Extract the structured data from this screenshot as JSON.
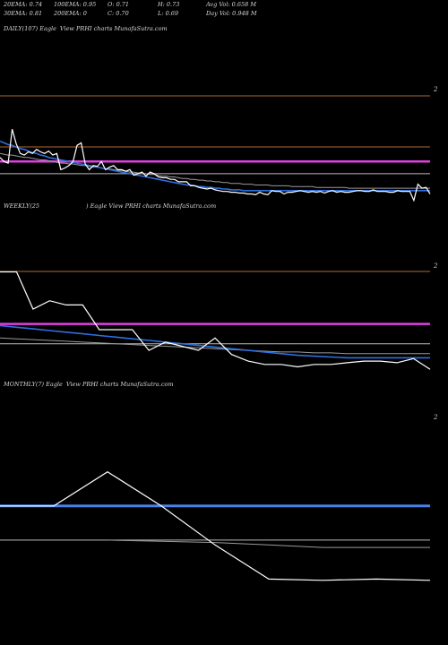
{
  "stats": {
    "ema20": "20EMA: 0.74",
    "ema100": "100EMA: 0.95",
    "open": "O: 0.71",
    "high": "H: 0.73",
    "avg_vol": "Avg Vol: 0.658 M",
    "ema30": "30EMA: 0.81",
    "ema200": "200EMA: 0",
    "close": "C: 0.70",
    "low": "L: 0.69",
    "day_vol": "Day Vol: 0.948 M"
  },
  "panels": {
    "daily": {
      "label_prefix": "DAILY(107) Eagle",
      "label_suffix": "View  PRHI charts MunafaSutra.com"
    },
    "weekly": {
      "label_prefix": "WEEKLY(25",
      "label_suffix": ") Eagle   View  PRHI charts MunafaSutra.com"
    },
    "monthly": {
      "label_prefix": "MONTHLY(7) Eagle",
      "label_suffix": "View  PRHI charts MunafaSutra.com"
    }
  },
  "chart_data": [
    {
      "type": "line",
      "name": "daily",
      "axis_tick": "2",
      "ylim": [
        0.55,
        2.1
      ],
      "price": [
        1.15,
        1.1,
        1.08,
        1.5,
        1.32,
        1.2,
        1.18,
        1.22,
        1.2,
        1.25,
        1.22,
        1.2,
        1.23,
        1.18,
        1.2,
        1.0,
        1.02,
        1.05,
        1.1,
        1.3,
        1.33,
        1.07,
        1.0,
        1.05,
        1.04,
        1.1,
        1.0,
        1.03,
        1.05,
        1.0,
        1.0,
        0.98,
        1.0,
        0.93,
        0.95,
        0.97,
        0.92,
        0.97,
        0.95,
        0.91,
        0.9,
        0.9,
        0.88,
        0.88,
        0.85,
        0.85,
        0.85,
        0.8,
        0.8,
        0.78,
        0.77,
        0.76,
        0.77,
        0.75,
        0.74,
        0.73,
        0.73,
        0.72,
        0.72,
        0.71,
        0.71,
        0.7,
        0.7,
        0.69,
        0.72,
        0.7,
        0.69,
        0.74,
        0.73,
        0.73,
        0.7,
        0.72,
        0.72,
        0.73,
        0.74,
        0.73,
        0.72,
        0.73,
        0.72,
        0.73,
        0.71,
        0.73,
        0.74,
        0.72,
        0.73,
        0.72,
        0.72,
        0.73,
        0.74,
        0.74,
        0.73,
        0.73,
        0.75,
        0.73,
        0.73,
        0.73,
        0.72,
        0.72,
        0.74,
        0.73,
        0.73,
        0.73,
        0.62,
        0.82,
        0.77,
        0.78,
        0.7
      ],
      "ema_blue": [
        1.35,
        1.33,
        1.31,
        1.3,
        1.28,
        1.26,
        1.25,
        1.23,
        1.21,
        1.2,
        1.18,
        1.17,
        1.15,
        1.14,
        1.13,
        1.12,
        1.11,
        1.1,
        1.09,
        1.08,
        1.07,
        1.06,
        1.05,
        1.04,
        1.03,
        1.02,
        1.01,
        1.0,
        0.99,
        0.98,
        0.97,
        0.96,
        0.95,
        0.94,
        0.93,
        0.92,
        0.91,
        0.9,
        0.89,
        0.88,
        0.87,
        0.86,
        0.85,
        0.84,
        0.83,
        0.82,
        0.81,
        0.81,
        0.8,
        0.79,
        0.79,
        0.78,
        0.78,
        0.77,
        0.77,
        0.76,
        0.76,
        0.75,
        0.75,
        0.75,
        0.74,
        0.74,
        0.74,
        0.74,
        0.74,
        0.74,
        0.74,
        0.74,
        0.74,
        0.74,
        0.74,
        0.74,
        0.74,
        0.74,
        0.74,
        0.74,
        0.74,
        0.74,
        0.74,
        0.74,
        0.74,
        0.74,
        0.74,
        0.74,
        0.74,
        0.74,
        0.74,
        0.74,
        0.74,
        0.74,
        0.74,
        0.74,
        0.74,
        0.74,
        0.74,
        0.74,
        0.74,
        0.74,
        0.74,
        0.74,
        0.74,
        0.74,
        0.74,
        0.74,
        0.74,
        0.74,
        0.74
      ],
      "ema_gray": [
        1.2,
        1.19,
        1.18,
        1.18,
        1.17,
        1.16,
        1.15,
        1.15,
        1.14,
        1.13,
        1.12,
        1.12,
        1.11,
        1.1,
        1.09,
        1.08,
        1.08,
        1.07,
        1.07,
        1.06,
        1.05,
        1.05,
        1.04,
        1.03,
        1.03,
        1.02,
        1.01,
        1.01,
        1.0,
        0.99,
        0.99,
        0.98,
        0.97,
        0.97,
        0.96,
        0.95,
        0.95,
        0.94,
        0.94,
        0.93,
        0.92,
        0.92,
        0.91,
        0.91,
        0.9,
        0.89,
        0.89,
        0.88,
        0.88,
        0.87,
        0.87,
        0.86,
        0.86,
        0.85,
        0.85,
        0.84,
        0.84,
        0.83,
        0.83,
        0.83,
        0.82,
        0.82,
        0.82,
        0.81,
        0.81,
        0.81,
        0.81,
        0.8,
        0.8,
        0.8,
        0.8,
        0.8,
        0.79,
        0.79,
        0.79,
        0.79,
        0.79,
        0.79,
        0.78,
        0.78,
        0.78,
        0.78,
        0.78,
        0.78,
        0.78,
        0.78,
        0.77,
        0.77,
        0.77,
        0.77,
        0.77,
        0.77,
        0.77,
        0.77,
        0.77,
        0.77,
        0.77,
        0.77,
        0.77,
        0.77,
        0.77,
        0.77,
        0.77,
        0.77,
        0.77,
        0.77,
        0.77
      ],
      "level_magenta": 1.1,
      "level_gray": 0.95,
      "level_upper": 1.83
    },
    {
      "type": "line",
      "name": "weekly",
      "axis_tick": "2",
      "ylim": [
        0.55,
        2.1
      ],
      "price": [
        1.9,
        1.9,
        1.45,
        1.55,
        1.5,
        1.5,
        1.2,
        1.2,
        1.2,
        0.95,
        1.05,
        1.0,
        0.95,
        1.1,
        0.9,
        0.82,
        0.78,
        0.78,
        0.75,
        0.78,
        0.78,
        0.8,
        0.82,
        0.82,
        0.8,
        0.85,
        0.72
      ],
      "ema_blue": [
        1.25,
        1.23,
        1.21,
        1.19,
        1.17,
        1.15,
        1.13,
        1.11,
        1.09,
        1.07,
        1.05,
        1.03,
        1.01,
        0.99,
        0.97,
        0.95,
        0.93,
        0.91,
        0.89,
        0.88,
        0.87,
        0.86,
        0.86,
        0.86,
        0.86,
        0.86,
        0.86
      ],
      "ema_gray": [
        1.1,
        1.09,
        1.08,
        1.07,
        1.06,
        1.05,
        1.04,
        1.03,
        1.02,
        1.01,
        1.0,
        0.99,
        0.98,
        0.97,
        0.96,
        0.95,
        0.94,
        0.93,
        0.93,
        0.92,
        0.92,
        0.91,
        0.91,
        0.91,
        0.91,
        0.91,
        0.91
      ],
      "level_magenta": 1.27,
      "level_gray": 1.03,
      "level_upper": 1.95
    },
    {
      "type": "line",
      "name": "monthly",
      "axis_tick": "2",
      "ylim": [
        0.4,
        2.2
      ],
      "price": [
        1.32,
        1.32,
        1.6,
        1.32,
        1.0,
        0.72,
        0.71,
        0.72,
        0.71
      ],
      "ema_blue": [
        1.32,
        1.32,
        1.32,
        1.32,
        1.32,
        1.32,
        1.32,
        1.32,
        1.32
      ],
      "ema_gray": [
        1.04,
        1.04,
        1.04,
        1.03,
        1.02,
        1.0,
        0.98,
        0.98,
        0.98
      ],
      "level_gray": 1.04,
      "level_upper": 2.02
    }
  ]
}
